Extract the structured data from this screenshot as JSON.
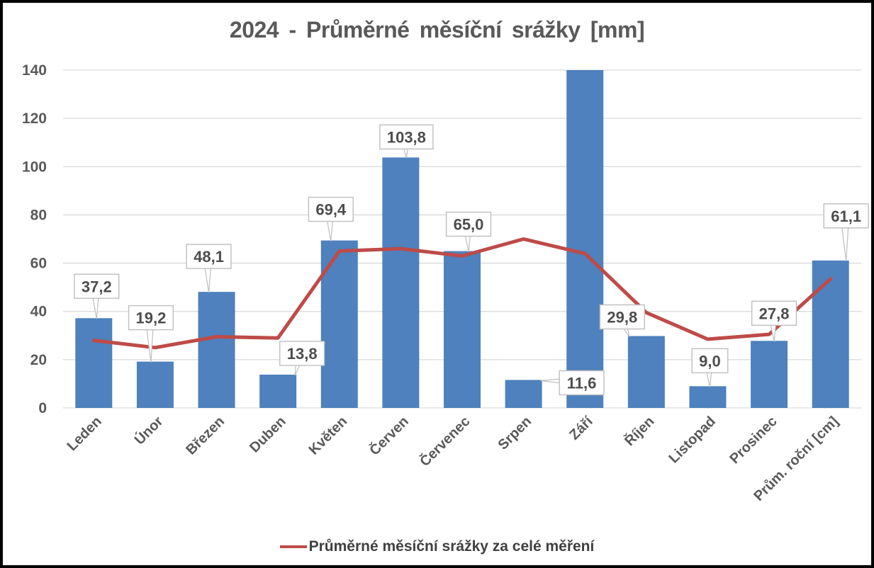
{
  "chart_data": {
    "type": "bar",
    "title": "2024 - Průměrné měsíční srážky [mm]",
    "categories": [
      "Leden",
      "Únor",
      "Březen",
      "Duben",
      "Květen",
      "Červen",
      "Červenec",
      "Srpen",
      "Září",
      "Říjen",
      "Listopad",
      "Prosinec",
      "Prům. roční [cm]"
    ],
    "series": [
      {
        "type": "bar",
        "color": "#4E81BD",
        "values": [
          37.2,
          19.2,
          48.1,
          13.8,
          69.4,
          103.8,
          65.0,
          11.6,
          140.0,
          29.8,
          9.0,
          27.8,
          61.1
        ],
        "data_labels": [
          "37,2",
          "19,2",
          "48,1",
          "13,8",
          "69,4",
          "103,8",
          "65,0",
          "11,6",
          null,
          "29,8",
          "9,0",
          "27,8",
          "61,1"
        ]
      },
      {
        "name": "Průměrné měsíční srážky za celé měření",
        "type": "line",
        "color": "#BE4B48",
        "values": [
          28,
          25,
          29.5,
          29,
          65,
          66,
          63,
          70,
          64,
          39.5,
          28.5,
          30.5,
          53.5
        ]
      }
    ],
    "xlabel": "",
    "ylabel": "",
    "ylim": [
      0,
      140
    ],
    "yticks": [
      0,
      20,
      40,
      60,
      80,
      100,
      120,
      140
    ],
    "grid": "horizontal",
    "legend": {
      "position": "bottom",
      "entries": [
        {
          "label": "Průměrné měsíční srážky za celé měření",
          "color": "#BE4B48"
        }
      ]
    },
    "layout_hints": {
      "x_tick_rotation": -45,
      "label_offsets": [
        [
          4,
          -45
        ],
        [
          -6,
          -62
        ],
        [
          -11,
          -50
        ],
        [
          34,
          -30
        ],
        [
          -12,
          -44
        ],
        [
          8,
          -29
        ],
        [
          9,
          -38
        ],
        [
          82,
          4
        ],
        null,
        [
          -34,
          -27
        ],
        [
          3,
          -36
        ],
        [
          7,
          -39
        ],
        [
          22,
          -63
        ]
      ]
    }
  },
  "colors": {
    "axis_text": "#595959",
    "grid": "#D9D9D9",
    "callout_border": "#BFBFBF",
    "background": "#FFFFFF",
    "frame": "#000000"
  }
}
